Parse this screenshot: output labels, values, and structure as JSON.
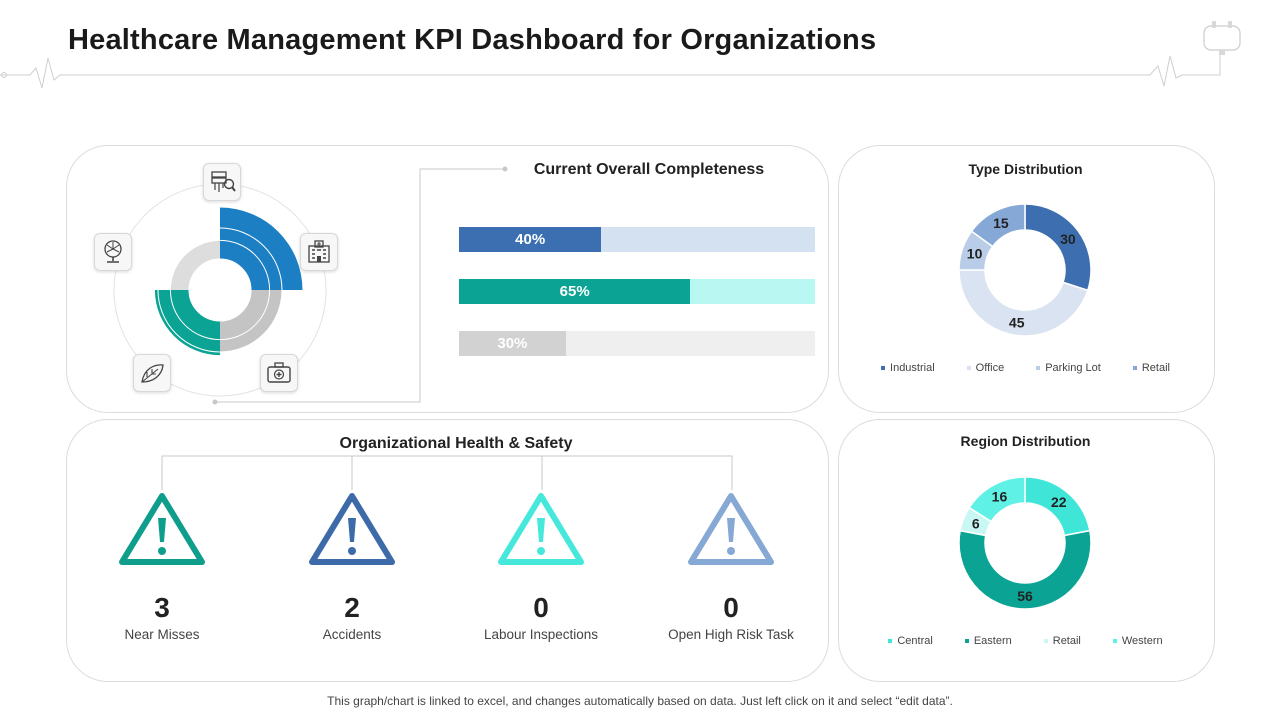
{
  "page": {
    "title": "Healthcare Management KPI Dashboard for Organizations",
    "footer": "This graph/chart is linked to excel, and changes automatically based on data. Just left click on it and select “edit data”."
  },
  "completeness": {
    "title": "Current Overall Completeness",
    "bars": [
      {
        "label": "40%",
        "value": 40,
        "fill": "#3b6fb2",
        "track": "#d3e1f1"
      },
      {
        "label": "65%",
        "value": 65,
        "fill": "#0aa394",
        "track": "#b8f7f2"
      },
      {
        "label": "30%",
        "value": 30,
        "fill": "#d2d2d2",
        "track": "#efefef"
      }
    ]
  },
  "safety": {
    "title": "Organizational Health & Safety",
    "items": [
      {
        "value": "3",
        "label": "Near Misses",
        "color": "#109e8c"
      },
      {
        "value": "2",
        "label": "Accidents",
        "color": "#3d6aa8"
      },
      {
        "value": "0",
        "label": "Labour Inspections",
        "color": "#46e8dc"
      },
      {
        "value": "0",
        "label": "Open High Risk Task",
        "color": "#86a8d4"
      }
    ]
  },
  "chart_data": [
    {
      "type": "pie",
      "title": "Type Distribution",
      "categories": [
        "Industrial",
        "Office",
        "Parking Lot",
        "Retail"
      ],
      "values": [
        30,
        45,
        10,
        15
      ],
      "colors": [
        "#3d6fb0",
        "#d9e3f1",
        "#b9cde8",
        "#86a8d6"
      ],
      "legend": "bottom"
    },
    {
      "type": "pie",
      "title": "Region Distribution",
      "categories": [
        "Central",
        "Eastern",
        "Retail",
        "Western"
      ],
      "values": [
        22,
        56,
        6,
        16
      ],
      "colors": [
        "#3fe6d8",
        "#0aa394",
        "#c9f7f4",
        "#5ff0e6"
      ],
      "legend": "bottom"
    },
    {
      "type": "radial-bar",
      "rings": [
        {
          "color": "#0aa394",
          "start": 0.5,
          "end": 0.75,
          "inner": 0.5,
          "outer": 1.05
        },
        {
          "color": "#1c7fc4",
          "start": 0.0,
          "end": 0.25,
          "inner": 0.5,
          "outer": 1.33
        },
        {
          "color": "#c4c4c4",
          "start": 0.25,
          "end": 0.5,
          "inner": 0.5,
          "outer": 1.0
        },
        {
          "color": "#dddddd",
          "start": 0.75,
          "end": 1.0,
          "inner": 0.5,
          "outer": 0.8
        }
      ],
      "icons": [
        "server-search-icon",
        "hospital-icon",
        "first-aid-kit-icon",
        "leaf-icon",
        "fan-icon"
      ]
    }
  ]
}
